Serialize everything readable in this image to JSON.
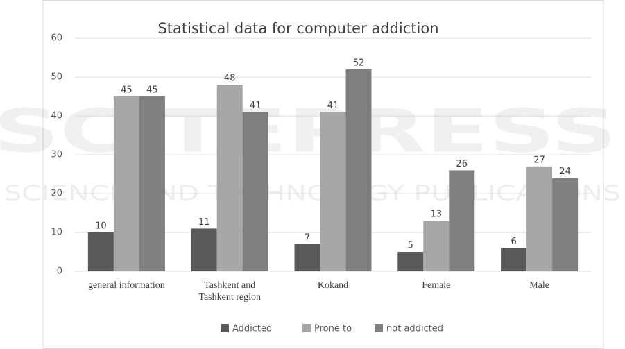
{
  "watermark": [
    "SCITEPRESS",
    "SCIENCE AND TECHNOLOGY PUBLICATIONS"
  ],
  "chart_data": {
    "type": "bar",
    "title": "Statistical data for computer addiction",
    "categories": [
      "general information",
      "Tashkent and\nTashkent region",
      "Kokand",
      "Female",
      "Male"
    ],
    "series": [
      {
        "name": "Addicted",
        "color": "#595959",
        "values": [
          10,
          11,
          7,
          5,
          6
        ]
      },
      {
        "name": "Prone to",
        "color": "#a6a6a6",
        "values": [
          45,
          48,
          41,
          13,
          27
        ]
      },
      {
        "name": "not addicted",
        "color": "#7f7f7f",
        "values": [
          45,
          41,
          52,
          26,
          24
        ]
      }
    ],
    "ylim": [
      0,
      60
    ],
    "yticks": [
      0,
      10,
      20,
      30,
      40,
      50,
      60
    ],
    "grid": true,
    "legend": "bottom"
  }
}
